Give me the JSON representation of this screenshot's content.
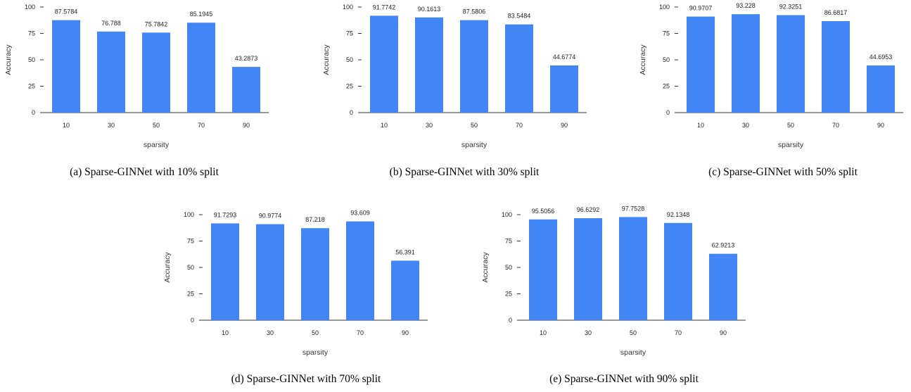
{
  "colors": {
    "bar": "#4285f4",
    "axis": "#333333"
  },
  "chart_data": [
    {
      "type": "bar",
      "caption": "(a) Sparse-GINNet with 10% split",
      "xlabel": "sparsity",
      "ylabel": "Accuracy",
      "categories": [
        "10",
        "30",
        "50",
        "70",
        "90"
      ],
      "values": [
        87.5784,
        76.788,
        75.7842,
        85.1945,
        43.2873
      ],
      "value_labels": [
        "87.5784",
        "76.788",
        "75.7842",
        "85.1945",
        "43.2873"
      ],
      "yticks": [
        "0",
        "25",
        "50",
        "75",
        "100"
      ],
      "ylim": [
        0,
        100
      ],
      "grid": false,
      "legend": "none"
    },
    {
      "type": "bar",
      "caption": "(b) Sparse-GINNet with 30% split",
      "xlabel": "sparsity",
      "ylabel": "Accuracy",
      "categories": [
        "10",
        "30",
        "50",
        "70",
        "90"
      ],
      "values": [
        91.7742,
        90.1613,
        87.5806,
        83.5484,
        44.6774
      ],
      "value_labels": [
        "91.7742",
        "90.1613",
        "87.5806",
        "83.5484",
        "44.6774"
      ],
      "yticks": [
        "0",
        "25",
        "50",
        "75",
        "100"
      ],
      "ylim": [
        0,
        100
      ],
      "grid": false,
      "legend": "none"
    },
    {
      "type": "bar",
      "caption": "(c) Sparse-GINNet with 50% split",
      "xlabel": "sparsity",
      "ylabel": "Accuracy",
      "categories": [
        "10",
        "30",
        "50",
        "70",
        "90"
      ],
      "values": [
        90.9707,
        93.228,
        92.3251,
        86.6817,
        44.6953
      ],
      "value_labels": [
        "90.9707",
        "93.228",
        "92.3251",
        "86.6817",
        "44.6953"
      ],
      "yticks": [
        "0",
        "25",
        "50",
        "75",
        "100"
      ],
      "ylim": [
        0,
        100
      ],
      "grid": false,
      "legend": "none"
    },
    {
      "type": "bar",
      "caption": "(d) Sparse-GINNet with 70% split",
      "xlabel": "sparsity",
      "ylabel": "Accuracy",
      "categories": [
        "10",
        "30",
        "50",
        "70",
        "90"
      ],
      "values": [
        91.7293,
        90.9774,
        87.218,
        93.609,
        56.391
      ],
      "value_labels": [
        "91.7293",
        "90.9774",
        "87.218",
        "93.609",
        "56.391"
      ],
      "yticks": [
        "0",
        "25",
        "50",
        "75",
        "100"
      ],
      "ylim": [
        0,
        100
      ],
      "grid": false,
      "legend": "none"
    },
    {
      "type": "bar",
      "caption": "(e) Sparse-GINNet with 90% split",
      "xlabel": "sparsity",
      "ylabel": "Accuracy",
      "categories": [
        "10",
        "30",
        "50",
        "70",
        "90"
      ],
      "values": [
        95.5056,
        96.6292,
        97.7528,
        92.1348,
        62.9213
      ],
      "value_labels": [
        "95.5056",
        "96.6292",
        "97.7528",
        "92.1348",
        "62.9213"
      ],
      "yticks": [
        "0",
        "25",
        "50",
        "75",
        "100"
      ],
      "ylim": [
        0,
        100
      ],
      "grid": false,
      "legend": "none"
    }
  ]
}
